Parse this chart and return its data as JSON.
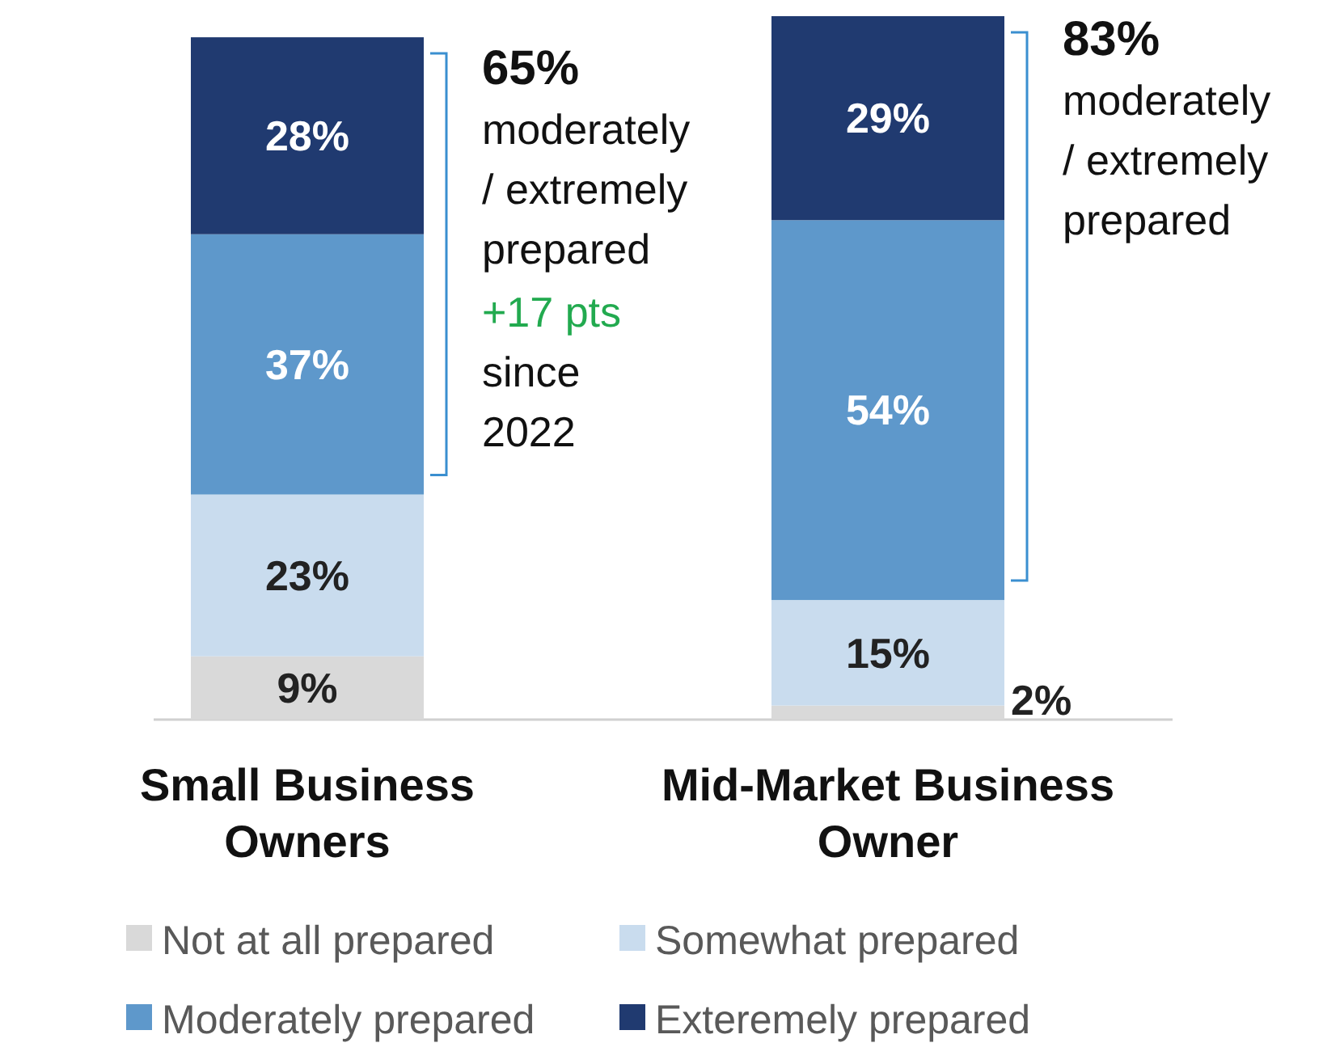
{
  "chart_data": {
    "type": "bar",
    "stacked": true,
    "categories": [
      "Small Business Owners",
      "Mid-Market Business Owner"
    ],
    "series": [
      {
        "name": "Not at all prepared",
        "color": "#d9d9d9",
        "values": [
          9,
          2
        ],
        "value_labels": [
          "9%",
          "2%"
        ]
      },
      {
        "name": "Somewhat prepared",
        "color": "#c9dcee",
        "values": [
          23,
          15
        ],
        "value_labels": [
          "23%",
          "15%"
        ]
      },
      {
        "name": "Moderately prepared",
        "color": "#5e98cb",
        "values": [
          37,
          54
        ],
        "value_labels": [
          "37%",
          "54%"
        ]
      },
      {
        "name": "Exteremely prepared",
        "color": "#203a70",
        "values": [
          28,
          29
        ],
        "value_labels": [
          "28%",
          "29%"
        ]
      }
    ],
    "legend": "bottom",
    "annotations": [
      "65%",
      "moderately / extremely prepared",
      "+17 pts",
      "since 2022",
      "83%",
      "moderately / extremely prepared"
    ]
  }
}
